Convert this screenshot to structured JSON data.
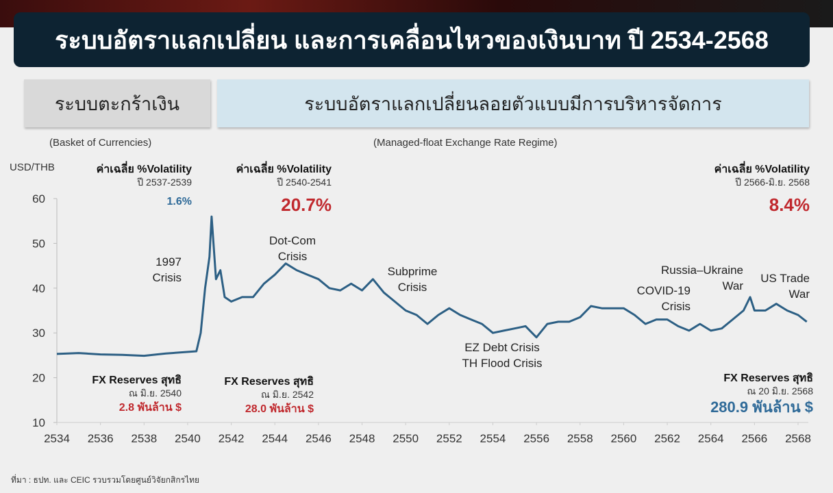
{
  "title": "ระบบอัตราแลกเปลี่ยน และการเคลื่อนไหวของเงินบาท ปี 2534-2568",
  "regimes": [
    {
      "label": "ระบบตะกร้าเงิน",
      "sublabel": "(Basket of Currencies)"
    },
    {
      "label": "ระบบอัตราแลกเปลี่ยนลอยตัวแบบมีการบริหารจัดการ",
      "sublabel": "(Managed-float Exchange Rate Regime)"
    }
  ],
  "source": "ที่มา : ธปท. และ CEIC รวบรวมโดยศูนย์วิจัยกสิกรไทย",
  "colors": {
    "line": "#2c5f84",
    "red": "#c0282d",
    "blue": "#2f6a98"
  },
  "chart_data": {
    "type": "line",
    "title": "ระบบอัตราแลกเปลี่ยน และการเคลื่อนไหวของเงินบาท ปี 2534-2568",
    "ylabel": "USD/THB",
    "xlabel": "",
    "xlim": [
      2534,
      2568.6
    ],
    "ylim": [
      10,
      60
    ],
    "xticks": [
      "2534",
      "2536",
      "2538",
      "2540",
      "2542",
      "2544",
      "2546",
      "2548",
      "2550",
      "2552",
      "2554",
      "2556",
      "2558",
      "2560",
      "2562",
      "2564",
      "2566",
      "2568"
    ],
    "yticks": [
      "10",
      "20",
      "30",
      "40",
      "50",
      "60"
    ],
    "series": [
      {
        "name": "USD/THB",
        "x": [
          2534,
          2535,
          2536,
          2537,
          2538,
          2539,
          2540.4,
          2540.6,
          2540.8,
          2541.0,
          2541.1,
          2541.3,
          2541.5,
          2541.7,
          2542,
          2542.5,
          2543,
          2543.5,
          2544,
          2544.5,
          2545,
          2545.5,
          2546,
          2546.5,
          2547,
          2547.5,
          2548,
          2548.5,
          2549,
          2549.5,
          2550,
          2550.5,
          2551,
          2551.5,
          2552,
          2552.5,
          2553,
          2553.5,
          2554,
          2554.5,
          2555,
          2555.5,
          2556,
          2556.5,
          2557,
          2557.5,
          2558,
          2558.5,
          2559,
          2559.5,
          2560,
          2560.5,
          2561,
          2561.5,
          2562,
          2562.5,
          2563,
          2563.5,
          2564,
          2564.5,
          2565,
          2565.5,
          2565.8,
          2566,
          2566.5,
          2567,
          2567.5,
          2568,
          2568.4
        ],
        "y": [
          25.3,
          25.5,
          25.2,
          25.1,
          24.9,
          25.4,
          25.9,
          30,
          40,
          47,
          56,
          42,
          44,
          38,
          37,
          38,
          38,
          41,
          43,
          45.5,
          44,
          43,
          42,
          40,
          39.5,
          41,
          39.5,
          42,
          39,
          37,
          35,
          34,
          32,
          34,
          35.5,
          34,
          33,
          32,
          30,
          30.5,
          31,
          31.5,
          29,
          32,
          32.5,
          32.5,
          33.5,
          36,
          35.5,
          35.5,
          35.5,
          34,
          32,
          33,
          33,
          31.5,
          30.5,
          32,
          30.5,
          31,
          33,
          35,
          38,
          35,
          35,
          36.5,
          35,
          34,
          32.5
        ]
      }
    ],
    "annotations": {
      "events": [
        {
          "text": [
            "1997",
            "Crisis"
          ],
          "x": 2541.0,
          "y": 46
        },
        {
          "text": [
            "Dot-Com",
            "Crisis"
          ],
          "x": 2544.8,
          "y": 50
        },
        {
          "text": [
            "Subprime",
            "Crisis"
          ],
          "x": 2550.5,
          "y": 43
        },
        {
          "text": [
            "EZ Debt Crisis",
            "TH Flood Crisis"
          ],
          "x": 2554.6,
          "y": 28
        },
        {
          "text": [
            "COVID-19",
            "Crisis"
          ],
          "x": 2563.2,
          "y": 40
        },
        {
          "text": [
            "Russia–Ukraine",
            "War"
          ],
          "x": 2565.2,
          "y": 43.5
        },
        {
          "text": [
            "US Trade",
            "War"
          ],
          "x": 2568.5,
          "y": 42
        }
      ],
      "volatility": [
        {
          "title": "ค่าเฉลี่ย %Volatility",
          "period": "ปี 2537-2539",
          "value": "1.6%",
          "color": "blue"
        },
        {
          "title": "ค่าเฉลี่ย %Volatility",
          "period": "ปี 2540-2541",
          "value": "20.7%",
          "color": "red"
        },
        {
          "title": "ค่าเฉลี่ย %Volatility",
          "period": "ปี 2566-มิ.ย. 2568",
          "value": "8.4%",
          "color": "red"
        }
      ],
      "reserves": [
        {
          "title": "FX Reserves สุทธิ",
          "date": "ณ มิ.ย. 2540",
          "value": "2.8 พันล้าน $",
          "color": "red"
        },
        {
          "title": "FX Reserves สุทธิ",
          "date": "ณ มิ.ย. 2542",
          "value": "28.0 พันล้าน $",
          "color": "red"
        },
        {
          "title": "FX Reserves สุทธิ",
          "date": "ณ 20 มิ.ย. 2568",
          "value": "280.9 พันล้าน $",
          "color": "blue"
        }
      ]
    }
  }
}
